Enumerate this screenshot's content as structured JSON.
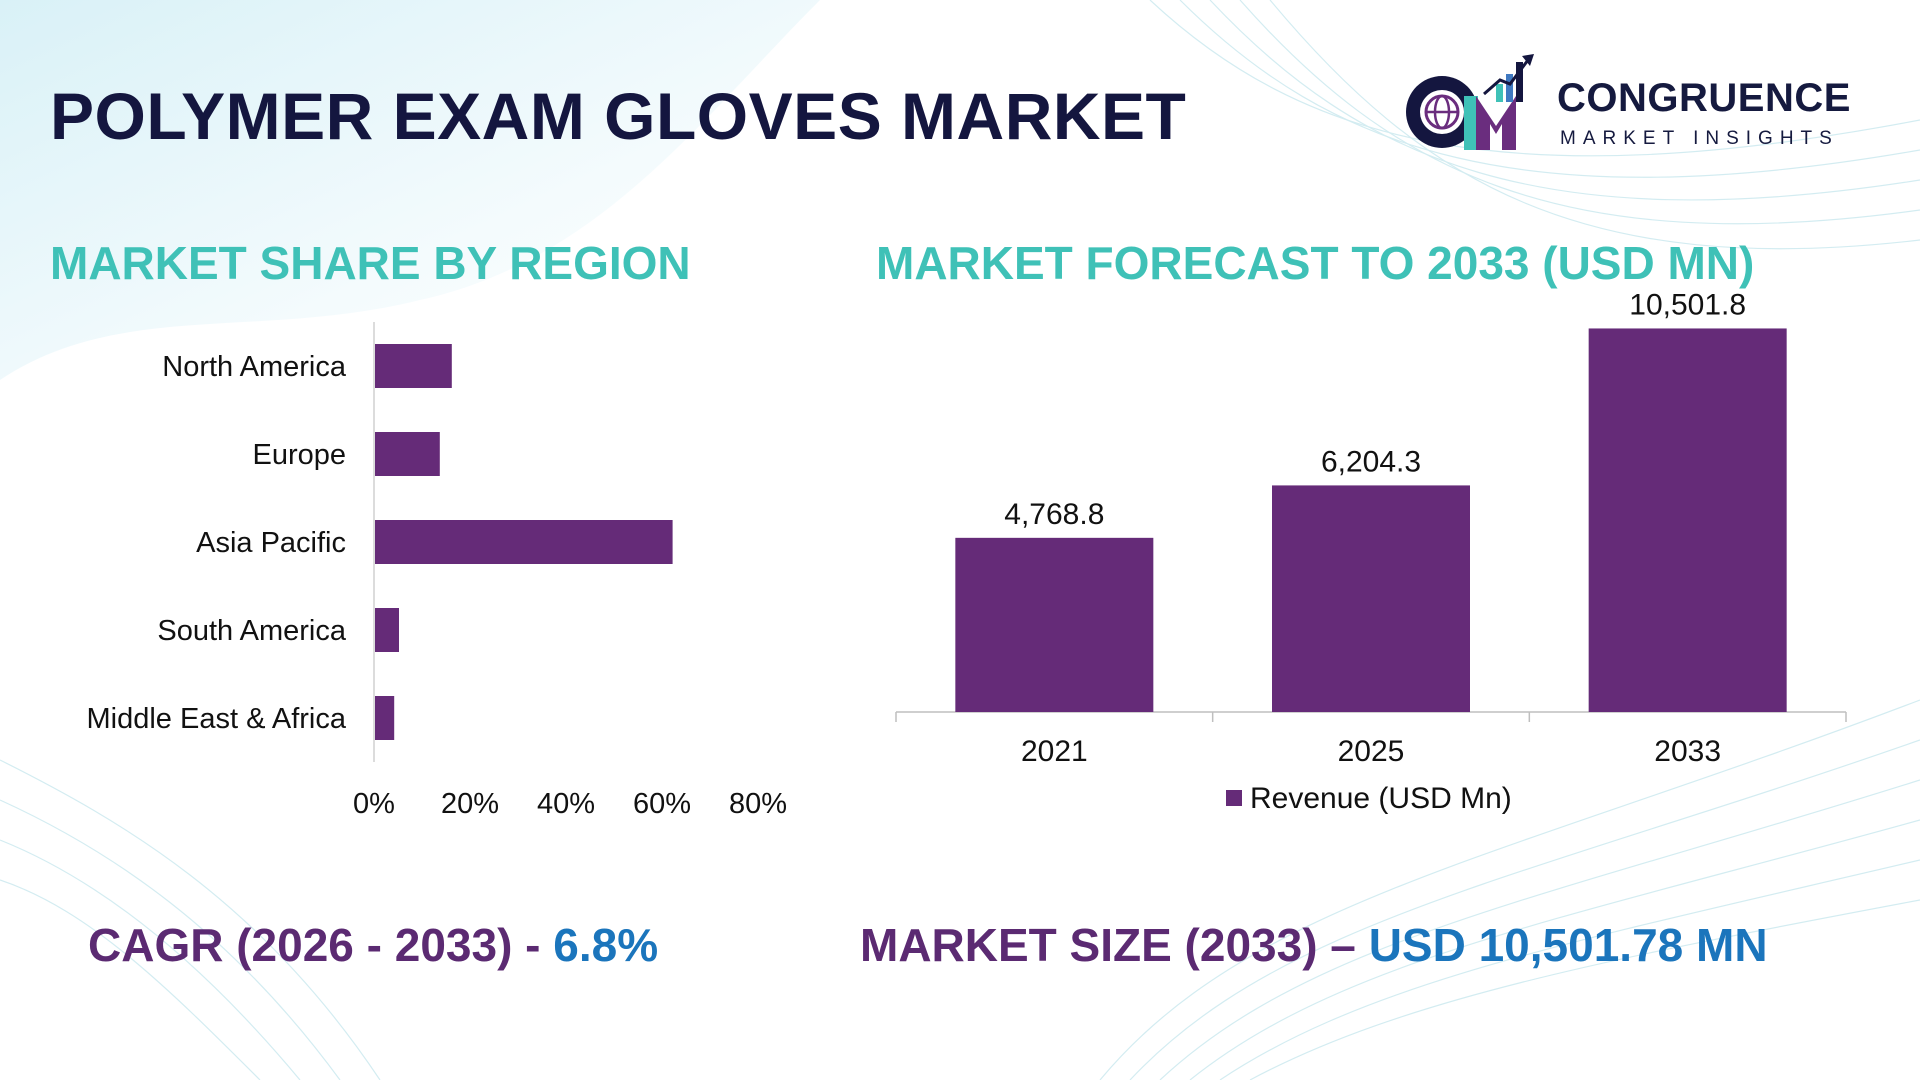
{
  "title": "POLYMER EXAM GLOVES MARKET",
  "logo": {
    "name": "CONGRUENCE",
    "sub": "MARKET INSIGHTS",
    "icon": "cm-globe-logo-icon"
  },
  "colors": {
    "bar": "#652b78",
    "title_accent": "#3fc1b7",
    "dark_text": "#14163f",
    "footer_dark": "#5b2a72",
    "footer_blue": "#1b75bc"
  },
  "chart_data": [
    {
      "type": "bar",
      "orientation": "horizontal",
      "title": "MARKET SHARE BY REGION",
      "categories": [
        "North America",
        "Europe",
        "Asia Pacific",
        "South America",
        "Middle East & Africa"
      ],
      "values": [
        16,
        13.5,
        62,
        5,
        4
      ],
      "xlim": [
        0,
        80
      ],
      "xticks": [
        "0%",
        "20%",
        "40%",
        "60%",
        "80%"
      ],
      "grid": false,
      "legend": "none"
    },
    {
      "type": "bar",
      "title": "MARKET FORECAST TO 2033 (USD MN)",
      "categories": [
        "2021",
        "2025",
        "2033"
      ],
      "series": [
        {
          "name": "Revenue (USD Mn)",
          "values": [
            4768.8,
            6204.3,
            10501.8
          ]
        }
      ],
      "data_labels": [
        "4,768.8",
        "6,204.3",
        "10,501.8"
      ],
      "ylim": [
        0,
        11500
      ],
      "grid": false,
      "legend": "bottom"
    }
  ],
  "footer": {
    "cagr_label": "CAGR (2026 - 2033) - ",
    "cagr_value": "6.8%",
    "size_label": "MARKET SIZE (2033) – ",
    "size_value": "USD 10,501.78 MN"
  }
}
